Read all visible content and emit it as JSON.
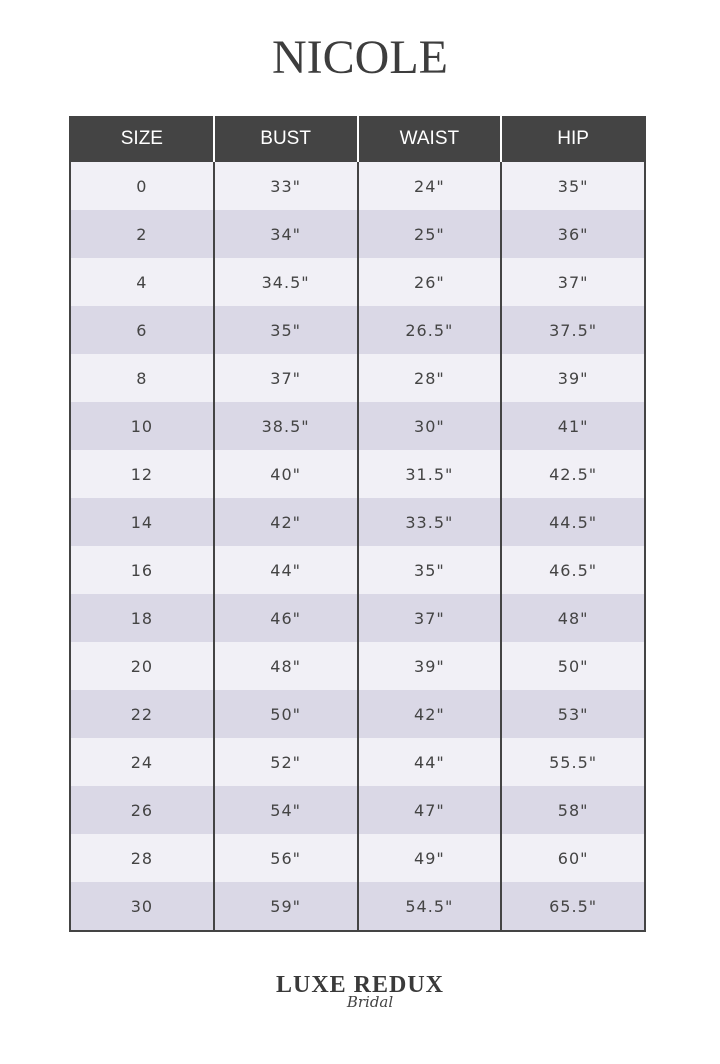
{
  "title": "NICOLE",
  "headers": [
    "SIZE",
    "BUST",
    "WAIST",
    "HIP"
  ],
  "rows": [
    [
      "0",
      "33\"",
      "24\"",
      "35\""
    ],
    [
      "2",
      "34\"",
      "25\"",
      "36\""
    ],
    [
      "4",
      "34.5\"",
      "26\"",
      "37\""
    ],
    [
      "6",
      "35\"",
      "26.5\"",
      "37.5\""
    ],
    [
      "8",
      "37\"",
      "28\"",
      "39\""
    ],
    [
      "10",
      "38.5\"",
      "30\"",
      "41\""
    ],
    [
      "12",
      "40\"",
      "31.5\"",
      "42.5\""
    ],
    [
      "14",
      "42\"",
      "33.5\"",
      "44.5\""
    ],
    [
      "16",
      "44\"",
      "35\"",
      "46.5\""
    ],
    [
      "18",
      "46\"",
      "37\"",
      "48\""
    ],
    [
      "20",
      "48\"",
      "39\"",
      "50\""
    ],
    [
      "22",
      "50\"",
      "42\"",
      "53\""
    ],
    [
      "24",
      "52\"",
      "44\"",
      "55.5\""
    ],
    [
      "26",
      "54\"",
      "47\"",
      "58\""
    ],
    [
      "28",
      "56\"",
      "49\"",
      "60\""
    ],
    [
      "30",
      "59\"",
      "54.5\"",
      "65.5\""
    ]
  ],
  "logo": {
    "main": "LUXE REDUX",
    "sub": "Bridal"
  },
  "colors": {
    "header": "#444444",
    "row_light": "#f1f0f6",
    "row_dark": "#dad8e6"
  }
}
